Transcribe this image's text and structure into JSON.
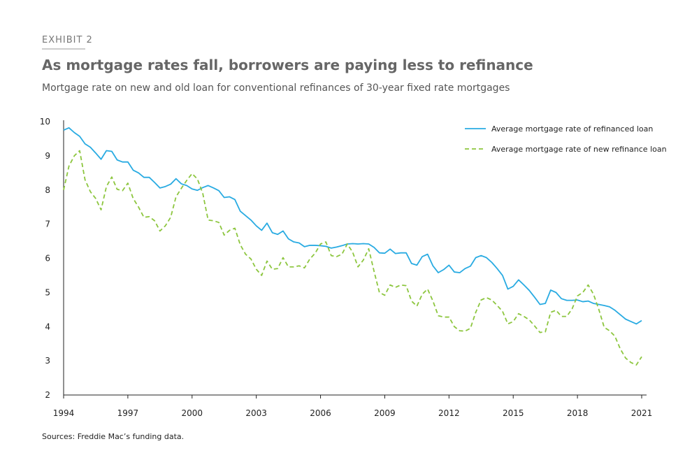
{
  "exhibit": "EXHIBIT 2",
  "title": "As mortgage rates fall, borrowers are paying less to refinance",
  "subtitle": "Mortgage rate on new and old loan for conventional refinances of 30-year fixed rate mortgages",
  "source": "Sources: Freddie Mac’s funding data.",
  "chart_data": {
    "type": "line",
    "x": [
      1994,
      1994.25,
      1994.5,
      1994.75,
      1995,
      1995.25,
      1995.5,
      1995.75,
      1996,
      1996.25,
      1996.5,
      1996.75,
      1997,
      1997.25,
      1997.5,
      1997.75,
      1998,
      1998.25,
      1998.5,
      1998.75,
      1999,
      1999.25,
      1999.5,
      1999.75,
      2000,
      2000.25,
      2000.5,
      2000.75,
      2001,
      2001.25,
      2001.5,
      2001.75,
      2002,
      2002.25,
      2002.5,
      2002.75,
      2003,
      2003.25,
      2003.5,
      2003.75,
      2004,
      2004.25,
      2004.5,
      2004.75,
      2005,
      2005.25,
      2005.5,
      2005.75,
      2006,
      2006.25,
      2006.5,
      2006.75,
      2007,
      2007.25,
      2007.5,
      2007.75,
      2008,
      2008.25,
      2008.5,
      2008.75,
      2009,
      2009.25,
      2009.5,
      2009.75,
      2010,
      2010.25,
      2010.5,
      2010.75,
      2011,
      2011.25,
      2011.5,
      2011.75,
      2012,
      2012.25,
      2012.5,
      2012.75,
      2013,
      2013.25,
      2013.5,
      2013.75,
      2014,
      2014.25,
      2014.5,
      2014.75,
      2015,
      2015.25,
      2015.5,
      2015.75,
      2016,
      2016.25,
      2016.5,
      2016.75,
      2017,
      2017.25,
      2017.5,
      2017.75,
      2018,
      2018.25,
      2018.5,
      2018.75,
      2019,
      2019.25,
      2019.5,
      2019.75,
      2020,
      2020.25,
      2020.5,
      2020.75,
      2021
    ],
    "series": [
      {
        "name": "Average mortgage rate of refinanced loan",
        "color": "#29abe2",
        "dash": false,
        "values": [
          9.75,
          9.82,
          9.68,
          9.57,
          9.35,
          9.25,
          9.08,
          8.9,
          9.15,
          9.13,
          8.88,
          8.82,
          8.82,
          8.58,
          8.5,
          8.37,
          8.37,
          8.22,
          8.06,
          8.1,
          8.17,
          8.33,
          8.18,
          8.13,
          8.03,
          7.99,
          8.07,
          8.13,
          8.06,
          7.98,
          7.78,
          7.8,
          7.72,
          7.38,
          7.25,
          7.12,
          6.95,
          6.82,
          7.03,
          6.75,
          6.7,
          6.8,
          6.57,
          6.48,
          6.45,
          6.34,
          6.38,
          6.38,
          6.37,
          6.35,
          6.3,
          6.33,
          6.37,
          6.42,
          6.43,
          6.42,
          6.43,
          6.42,
          6.32,
          6.16,
          6.15,
          6.27,
          6.14,
          6.16,
          6.16,
          5.85,
          5.8,
          6.05,
          6.12,
          5.78,
          5.58,
          5.67,
          5.8,
          5.6,
          5.58,
          5.7,
          5.77,
          6.02,
          6.08,
          6.02,
          5.88,
          5.7,
          5.5,
          5.1,
          5.18,
          5.37,
          5.22,
          5.06,
          4.86,
          4.65,
          4.68,
          5.07,
          5.0,
          4.82,
          4.77,
          4.77,
          4.78,
          4.73,
          4.75,
          4.68,
          4.65,
          4.62,
          4.58,
          4.48,
          4.35,
          4.22,
          4.15,
          4.08,
          4.18
        ]
      },
      {
        "name": "Average mortgage rate of new refinance loan",
        "color": "#8dc63f",
        "dash": true,
        "values": [
          8.0,
          8.7,
          9.0,
          9.15,
          8.3,
          7.95,
          7.75,
          7.42,
          8.1,
          8.38,
          8.02,
          7.98,
          8.2,
          7.75,
          7.5,
          7.2,
          7.22,
          7.1,
          6.8,
          6.95,
          7.2,
          7.8,
          8.05,
          8.28,
          8.48,
          8.32,
          7.9,
          7.12,
          7.1,
          7.05,
          6.68,
          6.82,
          6.88,
          6.4,
          6.12,
          5.98,
          5.68,
          5.5,
          5.92,
          5.68,
          5.7,
          6.02,
          5.75,
          5.75,
          5.78,
          5.72,
          5.98,
          6.15,
          6.42,
          6.48,
          6.08,
          6.05,
          6.12,
          6.42,
          6.18,
          5.75,
          5.95,
          6.28,
          5.62,
          5.0,
          4.92,
          5.22,
          5.15,
          5.22,
          5.2,
          4.75,
          4.6,
          4.95,
          5.1,
          4.75,
          4.32,
          4.28,
          4.28,
          4.0,
          3.88,
          3.87,
          3.95,
          4.42,
          4.78,
          4.85,
          4.78,
          4.62,
          4.45,
          4.08,
          4.15,
          4.38,
          4.3,
          4.2,
          4.02,
          3.83,
          3.85,
          4.42,
          4.48,
          4.3,
          4.3,
          4.52,
          4.9,
          5.0,
          5.22,
          4.95,
          4.5,
          3.98,
          3.88,
          3.72,
          3.35,
          3.08,
          2.95,
          2.88,
          3.12
        ]
      }
    ],
    "xlim": [
      1994,
      2021
    ],
    "xticks": [
      1994,
      1997,
      2000,
      2003,
      2006,
      2009,
      2012,
      2015,
      2018,
      2021
    ],
    "ylim": [
      2,
      10
    ],
    "yticks": [
      2,
      3,
      4,
      5,
      6,
      7,
      8,
      9,
      10
    ],
    "grid": false,
    "legend": "top-right"
  }
}
